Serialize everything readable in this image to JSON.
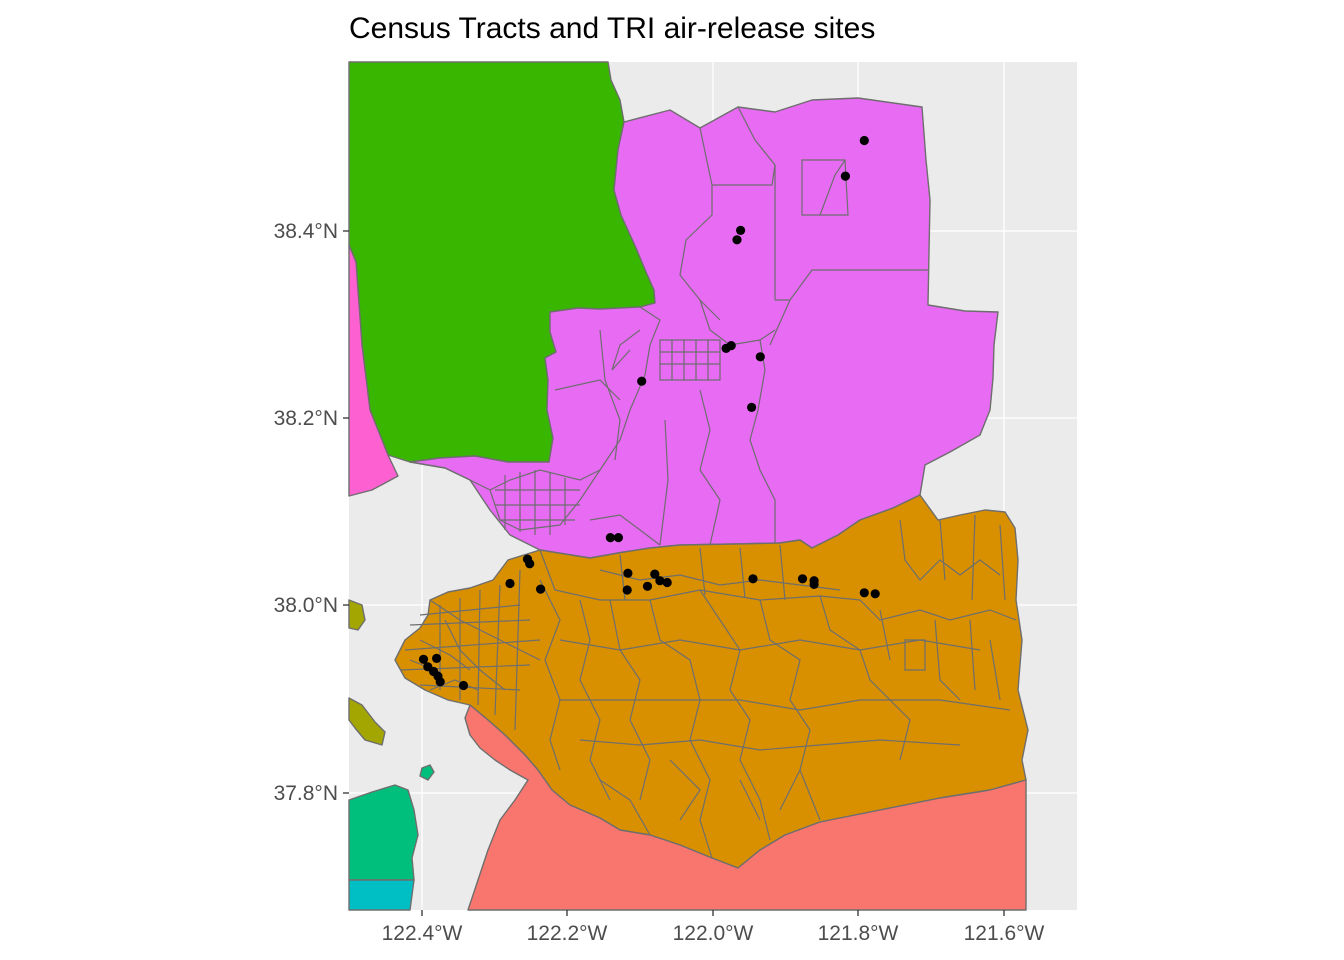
{
  "title": "Census Tracts and TRI air-release sites",
  "colors": {
    "panel_background": "#ebebeb",
    "grid": "#ffffff",
    "tract_border": "#6e6e6e",
    "site_point": "#000000",
    "axis_text": "#4d4d4d",
    "counties": {
      "sonoma": "#39b600",
      "napa_solano": "#e76bf3",
      "contra_costa": "#d89000",
      "alameda": "#f8766d",
      "marin": "#fd61d1",
      "san_francisco": "#00bf7d",
      "san_mateo": "#00bfc4",
      "marin_points": "#a3a500"
    }
  },
  "axes": {
    "x_ticks": [
      {
        "value": -122.4,
        "label": "122.4°W"
      },
      {
        "value": -122.2,
        "label": "122.2°W"
      },
      {
        "value": -122.0,
        "label": "122.0°W"
      },
      {
        "value": -121.8,
        "label": "121.8°W"
      },
      {
        "value": -121.6,
        "label": "121.6°W"
      }
    ],
    "y_ticks": [
      {
        "value": 38.4,
        "label": "38.4°N"
      },
      {
        "value": 38.2,
        "label": "38.2°N"
      },
      {
        "value": 38.0,
        "label": "38.0°N"
      },
      {
        "value": 37.8,
        "label": "37.8°N"
      }
    ],
    "lon_range": [
      -122.48,
      -121.48
    ],
    "lat_range": [
      37.68,
      38.57
    ]
  },
  "tri_sites": [
    {
      "lon": -121.792,
      "lat": 38.496
    },
    {
      "lon": -121.818,
      "lat": 38.458
    },
    {
      "lon": -121.962,
      "lat": 38.4
    },
    {
      "lon": -121.967,
      "lat": 38.39
    },
    {
      "lon": -121.975,
      "lat": 38.277
    },
    {
      "lon": -121.982,
      "lat": 38.274
    },
    {
      "lon": -121.935,
      "lat": 38.265
    },
    {
      "lon": -122.098,
      "lat": 38.239
    },
    {
      "lon": -121.947,
      "lat": 38.211
    },
    {
      "lon": -122.141,
      "lat": 38.072
    },
    {
      "lon": -122.13,
      "lat": 38.072
    },
    {
      "lon": -122.255,
      "lat": 38.049
    },
    {
      "lon": -122.252,
      "lat": 38.044
    },
    {
      "lon": -122.279,
      "lat": 38.023
    },
    {
      "lon": -122.237,
      "lat": 38.017
    },
    {
      "lon": -122.117,
      "lat": 38.034
    },
    {
      "lon": -122.118,
      "lat": 38.016
    },
    {
      "lon": -122.08,
      "lat": 38.033
    },
    {
      "lon": -122.073,
      "lat": 38.026
    },
    {
      "lon": -122.063,
      "lat": 38.024
    },
    {
      "lon": -122.09,
      "lat": 38.02
    },
    {
      "lon": -121.945,
      "lat": 38.028
    },
    {
      "lon": -121.877,
      "lat": 38.028
    },
    {
      "lon": -121.861,
      "lat": 38.026
    },
    {
      "lon": -121.861,
      "lat": 38.022
    },
    {
      "lon": -121.792,
      "lat": 38.013
    },
    {
      "lon": -121.777,
      "lat": 38.012
    },
    {
      "lon": -122.398,
      "lat": 37.942
    },
    {
      "lon": -122.38,
      "lat": 37.943
    },
    {
      "lon": -122.392,
      "lat": 37.934
    },
    {
      "lon": -122.384,
      "lat": 37.929
    },
    {
      "lon": -122.378,
      "lat": 37.924
    },
    {
      "lon": -122.375,
      "lat": 37.918
    },
    {
      "lon": -122.343,
      "lat": 37.914
    }
  ]
}
